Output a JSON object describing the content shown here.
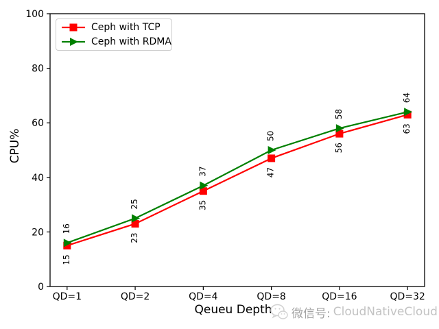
{
  "chart_data": {
    "type": "line",
    "categories": [
      "QD=1",
      "QD=2",
      "QD=4",
      "QD=8",
      "QD=16",
      "QD=32"
    ],
    "series": [
      {
        "name": "Ceph with TCP",
        "color": "#ff0000",
        "marker": "square",
        "values": [
          15,
          23,
          35,
          47,
          56,
          63
        ],
        "label_side": "below"
      },
      {
        "name": "Ceph with RDMA",
        "color": "#008000",
        "marker": "triangle-right",
        "values": [
          16,
          25,
          37,
          50,
          58,
          64
        ],
        "label_side": "above"
      }
    ],
    "title": "",
    "xlabel": "Qeueu Depth",
    "ylabel": "CPU%",
    "yticks": [
      0,
      20,
      40,
      60,
      80,
      100
    ],
    "ylim": [
      0,
      100
    ],
    "grid": false,
    "legend_position": "upper-left",
    "axis_color": "#000000"
  },
  "watermark": {
    "icon": "wechat-icon",
    "prefix": "微信号:",
    "account": "CloudNativeCloud"
  }
}
